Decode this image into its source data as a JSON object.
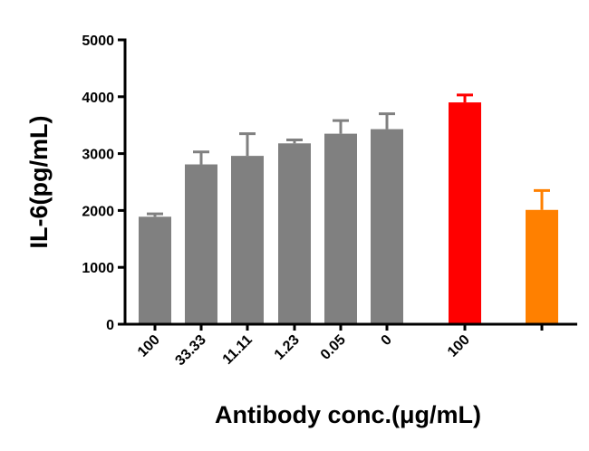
{
  "chart_data": {
    "type": "bar",
    "xlabel": "Antibody conc.(μg/mL)",
    "ylabel": "IL-6(pg/mL)",
    "ylim": [
      0,
      5000
    ],
    "yticks": [
      0,
      1000,
      2000,
      3000,
      4000,
      5000
    ],
    "grid": false,
    "legend": "none",
    "bars": [
      {
        "category": "100",
        "value": 1890,
        "error": 50,
        "color": "#808080"
      },
      {
        "category": "33.33",
        "value": 2810,
        "error": 220,
        "color": "#808080"
      },
      {
        "category": "11.11",
        "value": 2960,
        "error": 390,
        "color": "#808080"
      },
      {
        "category": "1.23",
        "value": 3180,
        "error": 60,
        "color": "#808080"
      },
      {
        "category": "0.05",
        "value": 3350,
        "error": 230,
        "color": "#808080"
      },
      {
        "category": "0",
        "value": 3430,
        "error": 270,
        "color": "#808080"
      },
      {
        "category": "100",
        "value": 3900,
        "error": 130,
        "color": "#ff0000"
      },
      {
        "category": "",
        "value": 2010,
        "error": 340,
        "color": "#ff8000"
      }
    ]
  }
}
